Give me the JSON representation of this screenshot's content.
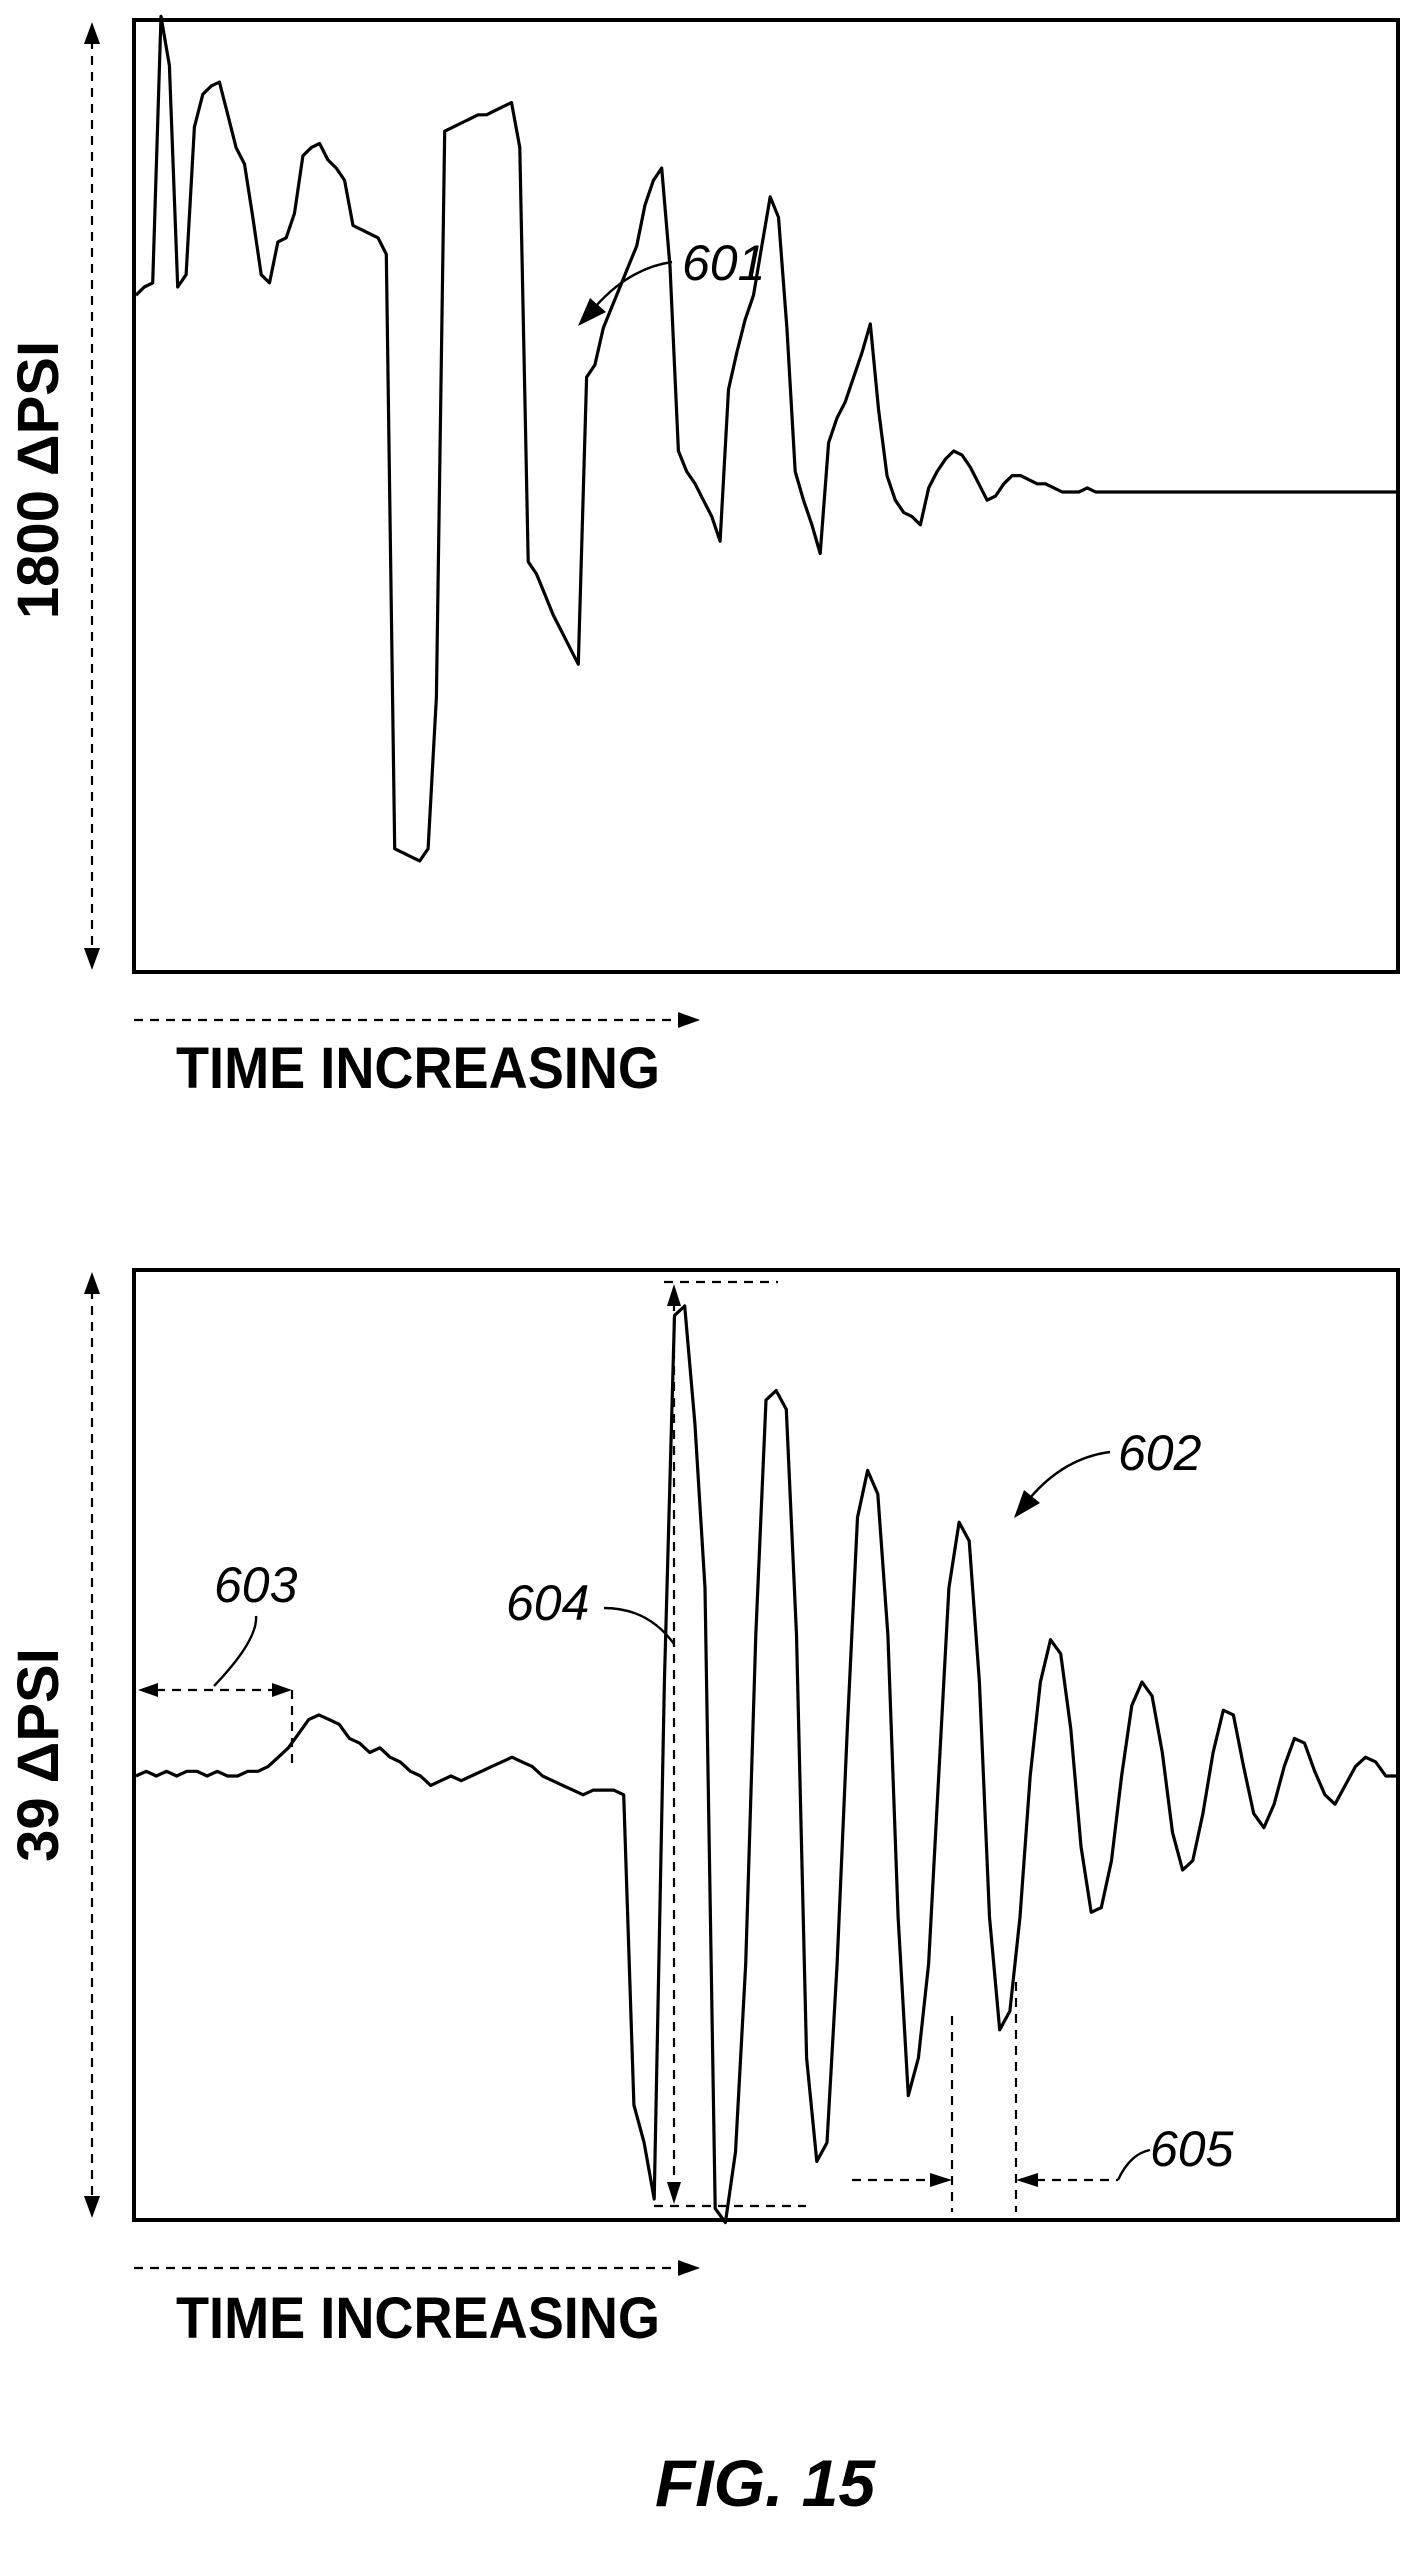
{
  "figure": {
    "caption": "FIG. 15"
  },
  "chart_data": [
    {
      "type": "line",
      "ylabel": "1800 ΔPSI",
      "xlabel": "TIME INCREASING",
      "grid": false,
      "annotations": {
        "trace_ref": "601"
      },
      "series": [
        {
          "values": [
            0.48,
            0.5,
            0.51,
            1.16,
            1.04,
            0.5,
            0.53,
            0.89,
            0.97,
            0.99,
            1.0,
            0.92,
            0.84,
            0.8,
            0.67,
            0.53,
            0.51,
            0.61,
            0.62,
            0.68,
            0.82,
            0.84,
            0.85,
            0.81,
            0.79,
            0.76,
            0.65,
            0.64,
            0.63,
            0.62,
            0.58,
            -0.87,
            -0.88,
            -0.89,
            -0.9,
            -0.87,
            -0.5,
            0.88,
            0.89,
            0.9,
            0.91,
            0.92,
            0.92,
            0.93,
            0.94,
            0.95,
            0.84,
            -0.17,
            -0.2,
            -0.25,
            -0.3,
            -0.34,
            -0.38,
            -0.42,
            0.28,
            0.31,
            0.4,
            0.45,
            0.5,
            0.55,
            0.6,
            0.7,
            0.76,
            0.79,
            0.55,
            0.1,
            0.05,
            0.02,
            -0.02,
            -0.06,
            -0.12,
            0.25,
            0.34,
            0.42,
            0.48,
            0.6,
            0.72,
            0.67,
            0.4,
            0.05,
            -0.02,
            -0.08,
            -0.15,
            0.12,
            0.18,
            0.22,
            0.28,
            0.34,
            0.41,
            0.2,
            0.04,
            -0.02,
            -0.05,
            -0.06,
            -0.08,
            0.01,
            0.05,
            0.08,
            0.1,
            0.09,
            0.06,
            0.02,
            -0.02,
            -0.01,
            0.02,
            0.04,
            0.04,
            0.03,
            0.02,
            0.02,
            0.01,
            0.0,
            0.0,
            0.0,
            0.01,
            0.0,
            0.0,
            0.0,
            0.0,
            0.0,
            0.0,
            0.0,
            0.0,
            0.0,
            0.0,
            0.0,
            0.0,
            0.0,
            0.0,
            0.0,
            0.0,
            0.0,
            0.0,
            0.0,
            0.0,
            0.0,
            0.0,
            0.0,
            0.0,
            0.0,
            0.0,
            0.0,
            0.0,
            0.0,
            0.0,
            0.0,
            0.0,
            0.0,
            0.0,
            0.0,
            0.0,
            0.0
          ]
        }
      ]
    },
    {
      "type": "line",
      "ylabel": "39 ΔPSI",
      "xlabel": "TIME INCREASING",
      "grid": false,
      "annotations": {
        "trace_ref": "602",
        "baseline_interval_ref": "603",
        "amplitude_ref": "604",
        "period_ref": "605"
      },
      "series": [
        {
          "values": [
            0.0,
            0.01,
            0.0,
            0.01,
            0.0,
            0.01,
            0.01,
            0.0,
            0.01,
            0.0,
            0.0,
            0.01,
            0.01,
            0.02,
            0.04,
            0.06,
            0.09,
            0.12,
            0.13,
            0.12,
            0.11,
            0.08,
            0.07,
            0.05,
            0.06,
            0.04,
            0.03,
            0.01,
            0.0,
            -0.02,
            -0.01,
            0.0,
            -0.01,
            0.0,
            0.01,
            0.02,
            0.03,
            0.04,
            0.03,
            0.02,
            0.0,
            -0.01,
            -0.02,
            -0.03,
            -0.04,
            -0.03,
            -0.03,
            -0.03,
            -0.04,
            -0.7,
            -0.78,
            -0.9,
            0.2,
            0.98,
            1.0,
            0.75,
            0.4,
            -0.92,
            -0.95,
            -0.8,
            -0.4,
            0.3,
            0.8,
            0.82,
            0.78,
            0.3,
            -0.6,
            -0.82,
            -0.78,
            -0.4,
            0.1,
            0.55,
            0.65,
            0.6,
            0.3,
            -0.3,
            -0.68,
            -0.6,
            -0.4,
            0.0,
            0.4,
            0.54,
            0.5,
            0.2,
            -0.3,
            -0.54,
            -0.5,
            -0.3,
            0.0,
            0.2,
            0.29,
            0.26,
            0.1,
            -0.15,
            -0.29,
            -0.28,
            -0.18,
            0.0,
            0.15,
            0.2,
            0.17,
            0.05,
            -0.12,
            -0.2,
            -0.18,
            -0.08,
            0.05,
            0.14,
            0.13,
            0.02,
            -0.08,
            -0.11,
            -0.06,
            0.02,
            0.08,
            0.07,
            0.01,
            -0.04,
            -0.06,
            -0.02,
            0.02,
            0.04,
            0.03,
            0.0,
            0.0
          ]
        }
      ]
    }
  ]
}
